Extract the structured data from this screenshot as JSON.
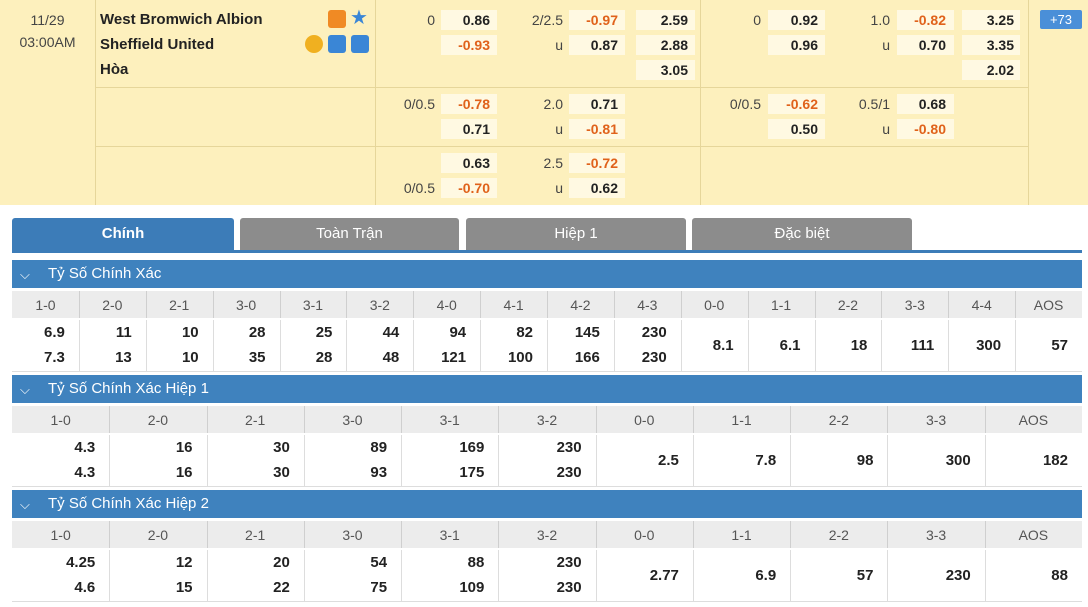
{
  "match": {
    "date": "11/29",
    "time": "03:00AM",
    "home": "West Bromwich Albion",
    "away": "Sheffield United",
    "draw": "Hòa",
    "more": "+73"
  },
  "odds_rows": [
    {
      "hdp": {
        "home_line": "0",
        "home": "0.86",
        "away": "-0.93"
      },
      "ou": {
        "line": "2/2.5",
        "over": "-0.97",
        "u": "u",
        "under": "0.87"
      },
      "x12": {
        "home": "2.59",
        "away": "2.88",
        "draw": "3.05"
      },
      "h1_hdp": {
        "home_line": "0",
        "home": "0.92",
        "away": "0.96"
      },
      "h1_ou": {
        "line": "1.0",
        "over": "-0.82",
        "u": "u",
        "under": "0.70"
      },
      "h1_x12": {
        "home": "3.25",
        "away": "3.35",
        "draw": "2.02"
      }
    },
    {
      "hdp": {
        "home_line": "0/0.5",
        "home": "-0.78",
        "away": "0.71"
      },
      "ou": {
        "line": "2.0",
        "over": "0.71",
        "u": "u",
        "under": "-0.81"
      },
      "h1_hdp": {
        "home_line": "0/0.5",
        "home": "-0.62",
        "away": "0.50"
      },
      "h1_ou": {
        "line": "0.5/1",
        "over": "0.68",
        "u": "u",
        "under": "-0.80"
      }
    },
    {
      "hdp": {
        "away_line": "0/0.5",
        "home": "0.63",
        "away": "-0.70"
      },
      "ou": {
        "line": "2.5",
        "over": "-0.72",
        "u": "u",
        "under": "0.62"
      }
    }
  ],
  "tabs": {
    "items": [
      "Chính",
      "Toàn Trận",
      "Hiệp 1",
      "Đặc biệt"
    ],
    "active": 0
  },
  "sections": [
    {
      "title": "Tỷ Số Chính Xác",
      "columns": [
        {
          "label": "1-0",
          "values": [
            "6.9",
            "7.3"
          ]
        },
        {
          "label": "2-0",
          "values": [
            "11",
            "13"
          ]
        },
        {
          "label": "2-1",
          "values": [
            "10",
            "10"
          ]
        },
        {
          "label": "3-0",
          "values": [
            "28",
            "35"
          ]
        },
        {
          "label": "3-1",
          "values": [
            "25",
            "28"
          ]
        },
        {
          "label": "3-2",
          "values": [
            "44",
            "48"
          ]
        },
        {
          "label": "4-0",
          "values": [
            "94",
            "121"
          ]
        },
        {
          "label": "4-1",
          "values": [
            "82",
            "100"
          ]
        },
        {
          "label": "4-2",
          "values": [
            "145",
            "166"
          ]
        },
        {
          "label": "4-3",
          "values": [
            "230",
            "230"
          ]
        },
        {
          "label": "0-0",
          "values": [
            "8.1"
          ]
        },
        {
          "label": "1-1",
          "values": [
            "6.1"
          ]
        },
        {
          "label": "2-2",
          "values": [
            "18"
          ]
        },
        {
          "label": "3-3",
          "values": [
            "111"
          ]
        },
        {
          "label": "4-4",
          "values": [
            "300"
          ]
        },
        {
          "label": "AOS",
          "values": [
            "57"
          ]
        }
      ]
    },
    {
      "title": "Tỷ Số Chính Xác Hiệp 1",
      "columns": [
        {
          "label": "1-0",
          "values": [
            "4.3",
            "4.3"
          ]
        },
        {
          "label": "2-0",
          "values": [
            "16",
            "16"
          ]
        },
        {
          "label": "2-1",
          "values": [
            "30",
            "30"
          ]
        },
        {
          "label": "3-0",
          "values": [
            "89",
            "93"
          ]
        },
        {
          "label": "3-1",
          "values": [
            "169",
            "175"
          ]
        },
        {
          "label": "3-2",
          "values": [
            "230",
            "230"
          ]
        },
        {
          "label": "0-0",
          "values": [
            "2.5"
          ]
        },
        {
          "label": "1-1",
          "values": [
            "7.8"
          ]
        },
        {
          "label": "2-2",
          "values": [
            "98"
          ]
        },
        {
          "label": "3-3",
          "values": [
            "300"
          ]
        },
        {
          "label": "AOS",
          "values": [
            "182"
          ]
        }
      ]
    },
    {
      "title": "Tỷ Số Chính Xác Hiệp 2",
      "columns": [
        {
          "label": "1-0",
          "values": [
            "4.25",
            "4.6"
          ]
        },
        {
          "label": "2-0",
          "values": [
            "12",
            "15"
          ]
        },
        {
          "label": "2-1",
          "values": [
            "20",
            "22"
          ]
        },
        {
          "label": "3-0",
          "values": [
            "54",
            "75"
          ]
        },
        {
          "label": "3-1",
          "values": [
            "88",
            "109"
          ]
        },
        {
          "label": "3-2",
          "values": [
            "230",
            "230"
          ]
        },
        {
          "label": "0-0",
          "values": [
            "2.77"
          ]
        },
        {
          "label": "1-1",
          "values": [
            "6.9"
          ]
        },
        {
          "label": "2-2",
          "values": [
            "57"
          ]
        },
        {
          "label": "3-3",
          "values": [
            "230"
          ]
        },
        {
          "label": "AOS",
          "values": [
            "88"
          ]
        }
      ]
    }
  ]
}
